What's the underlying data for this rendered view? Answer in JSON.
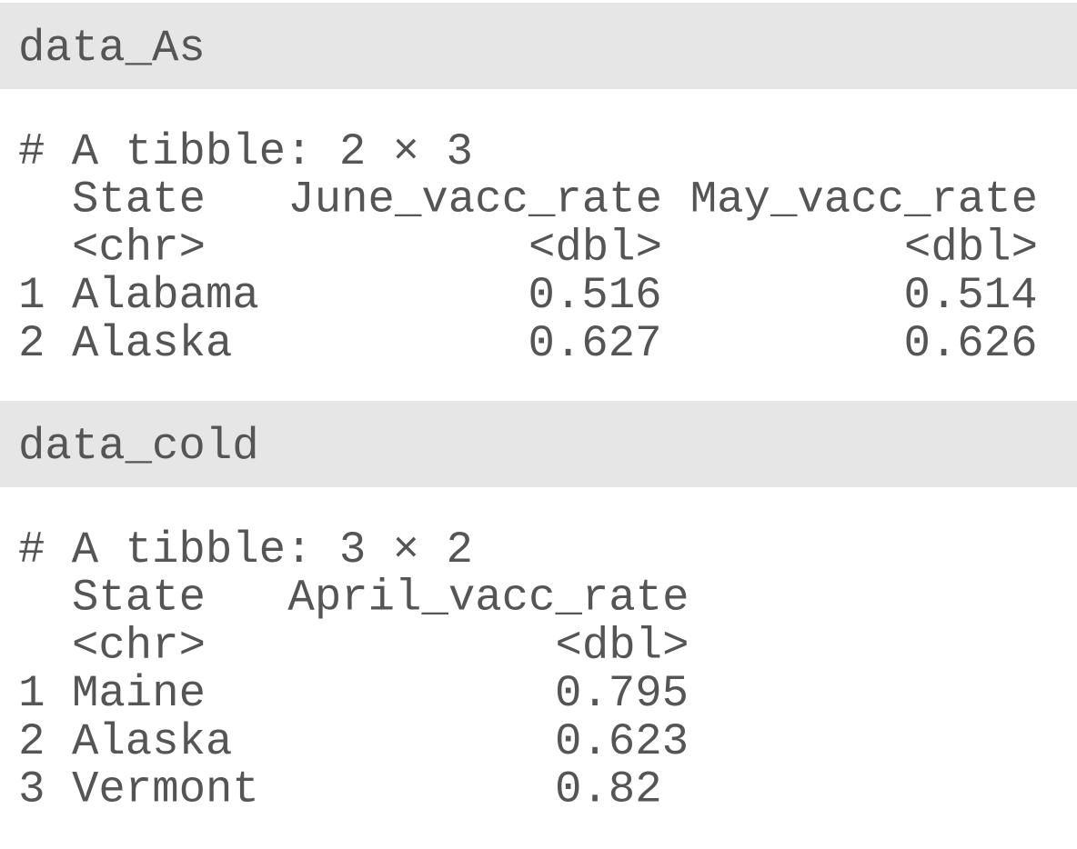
{
  "blocks": [
    {
      "name": "data_As",
      "caption": "# A tibble: 2 × 3",
      "columns": [
        {
          "name": "State",
          "type": "<chr>"
        },
        {
          "name": "June_vacc_rate",
          "type": "<dbl>"
        },
        {
          "name": "May_vacc_rate",
          "type": "<dbl>"
        }
      ],
      "rows": [
        [
          1,
          "Alabama",
          0.516,
          0.514
        ],
        [
          2,
          "Alaska",
          0.627,
          0.626
        ]
      ]
    },
    {
      "name": "data_cold",
      "caption": "# A tibble: 3 × 2",
      "columns": [
        {
          "name": "State",
          "type": "<chr>"
        },
        {
          "name": "April_vacc_rate",
          "type": "<dbl>"
        }
      ],
      "rows": [
        [
          1,
          "Maine",
          0.795
        ],
        [
          2,
          "Alaska",
          0.623
        ],
        [
          3,
          "Vermont",
          0.82
        ]
      ]
    }
  ]
}
